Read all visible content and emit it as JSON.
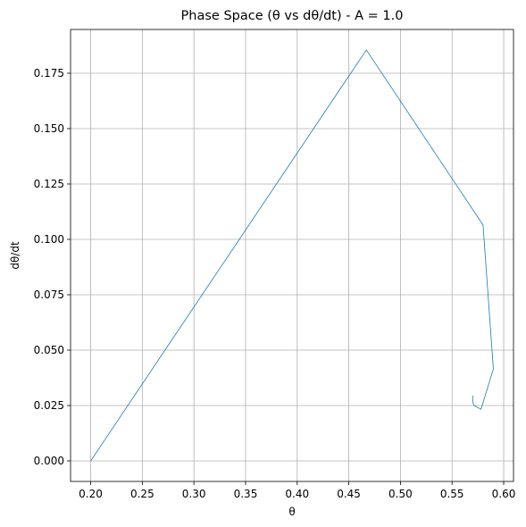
{
  "chart_data": {
    "type": "line",
    "title": "Phase Space (θ vs dθ/dt) - A = 1.0",
    "xlabel": "θ",
    "ylabel": "dθ/dt",
    "xlim": [
      0.1805,
      0.6095
    ],
    "ylim": [
      -0.00928,
      0.19475
    ],
    "grid": true,
    "x_ticks": [
      0.2,
      0.25,
      0.3,
      0.35,
      0.4,
      0.45,
      0.5,
      0.55,
      0.6
    ],
    "x_tick_labels": [
      "0.20",
      "0.25",
      "0.30",
      "0.35",
      "0.40",
      "0.45",
      "0.50",
      "0.55",
      "0.60"
    ],
    "y_ticks": [
      0.0,
      0.025,
      0.05,
      0.075,
      0.1,
      0.125,
      0.15,
      0.175
    ],
    "y_tick_labels": [
      "0.000",
      "0.025",
      "0.050",
      "0.075",
      "0.100",
      "0.125",
      "0.150",
      "0.175"
    ],
    "series": [
      {
        "color": "#1f77b4",
        "x": [
          0.2,
          0.467,
          0.58,
          0.59,
          0.578,
          0.571,
          0.57,
          0.57
        ],
        "y": [
          0.0,
          0.1855,
          0.1065,
          0.0415,
          0.0233,
          0.0251,
          0.0268,
          0.0295
        ]
      }
    ]
  }
}
